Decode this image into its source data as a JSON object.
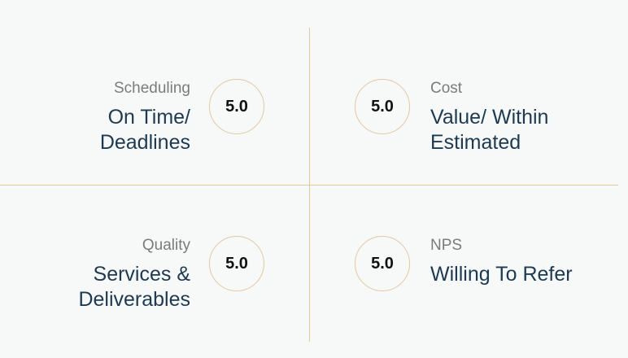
{
  "quadrants": [
    {
      "category": "Scheduling",
      "title": "On Time/\nDeadlines",
      "score": "5.0"
    },
    {
      "category": "Cost",
      "title": "Value/ Within\nEstimated",
      "score": "5.0"
    },
    {
      "category": "Quality",
      "title": "Services &\nDeliverables",
      "score": "5.0"
    },
    {
      "category": "NPS",
      "title": "Willing To Refer",
      "score": "5.0"
    }
  ]
}
